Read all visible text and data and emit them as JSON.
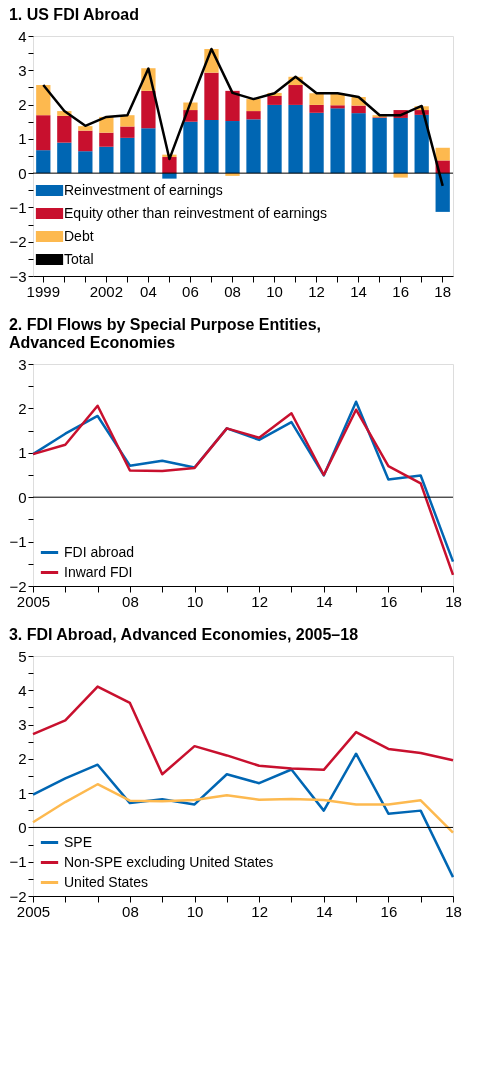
{
  "chart_data": [
    {
      "type": "bar",
      "title": "1. US FDI Abroad",
      "stacked": true,
      "legend": "bottom left",
      "grid": false,
      "categories": [
        "1999",
        null,
        null,
        "2002",
        null,
        "04",
        null,
        "06",
        null,
        "08",
        null,
        "10",
        null,
        "12",
        null,
        "14",
        null,
        "16",
        null,
        "18"
      ],
      "ylim": [
        -3,
        4
      ],
      "yticks": [
        {
          "value": -3,
          "label": "−3"
        },
        {
          "value": -2.5,
          "label": null
        },
        {
          "value": -2,
          "label": "−2"
        },
        {
          "value": -1.5,
          "label": null
        },
        {
          "value": -1,
          "label": "−1"
        },
        {
          "value": -0.5,
          "label": null
        },
        0,
        {
          "value": 0.5,
          "label": null
        },
        1,
        {
          "value": 1.5,
          "label": null
        },
        2,
        {
          "value": 2.5,
          "label": null
        },
        3,
        {
          "value": 3.5,
          "label": null
        },
        4
      ],
      "ref_lines": [
        {
          "axis": "y",
          "value": 0,
          "color": "#000000"
        }
      ],
      "series": [
        {
          "name": "Reinvestment of earnings",
          "color": "#0066b3",
          "values": [
            0.67,
            0.89,
            0.64,
            0.77,
            1.03,
            1.31,
            -0.16,
            1.5,
            1.55,
            1.52,
            1.57,
            1.99,
            1.99,
            1.76,
            1.89,
            1.75,
            1.61,
            1.61,
            1.7,
            -1.13
          ]
        },
        {
          "name": "Equity other than reinvestment of earnings",
          "color": "#c8102e",
          "values": [
            1.02,
            0.78,
            0.6,
            0.41,
            0.33,
            1.09,
            0.47,
            0.34,
            1.38,
            0.88,
            0.24,
            0.26,
            0.58,
            0.23,
            0.09,
            0.22,
            0.02,
            0.23,
            0.14,
            0.37
          ]
        },
        {
          "name": "Debt",
          "color": "#fdb94f",
          "values": [
            0.88,
            0.14,
            0.13,
            0.46,
            0.33,
            0.66,
            0.07,
            0.22,
            0.69,
            -0.08,
            0.35,
            0.09,
            0.24,
            0.34,
            0.35,
            0.25,
            0.06,
            -0.13,
            0.11,
            0.37
          ]
        },
        {
          "name": "Total",
          "type": "line",
          "color": "#000000",
          "values": [
            2.57,
            1.81,
            1.38,
            1.64,
            1.69,
            3.05,
            0.41,
            2.05,
            3.62,
            2.34,
            2.16,
            2.33,
            2.81,
            2.33,
            2.33,
            2.22,
            1.69,
            1.69,
            1.96,
            -0.37
          ]
        }
      ]
    },
    {
      "type": "line",
      "title": "2. FDI Flows by Special Purpose Entities, Advanced Economies",
      "legend": "bottom left",
      "grid": false,
      "x": [
        2005,
        2006,
        2007,
        2008,
        2009,
        2010,
        2011,
        2012,
        2013,
        2014,
        2015,
        2016,
        2017,
        2018
      ],
      "xlim": [
        2005,
        2018
      ],
      "xticks": [
        2005,
        {
          "value": 2006,
          "label": null
        },
        {
          "value": 2007,
          "label": null
        },
        {
          "value": 2008,
          "label": "08"
        },
        {
          "value": 2009,
          "label": null
        },
        {
          "value": 2010,
          "label": "10"
        },
        {
          "value": 2011,
          "label": null
        },
        {
          "value": 2012,
          "label": "12"
        },
        {
          "value": 2013,
          "label": null
        },
        {
          "value": 2014,
          "label": "14"
        },
        {
          "value": 2015,
          "label": null
        },
        {
          "value": 2016,
          "label": "16"
        },
        {
          "value": 2017,
          "label": null
        },
        {
          "value": 2018,
          "label": "18"
        }
      ],
      "ylim": [
        -2,
        3
      ],
      "yticks": [
        {
          "value": -2,
          "label": "−2"
        },
        {
          "value": -1.5,
          "label": null
        },
        {
          "value": -1,
          "label": "−1"
        },
        {
          "value": -0.5,
          "label": null
        },
        0,
        {
          "value": 0.5,
          "label": null
        },
        1,
        {
          "value": 1.5,
          "label": null
        },
        2,
        {
          "value": 2.5,
          "label": null
        },
        3
      ],
      "ref_lines": [
        {
          "axis": "y",
          "value": 0,
          "color": "#000000"
        }
      ],
      "series": [
        {
          "name": "FDI abroad",
          "color": "#0066b3",
          "values": [
            0.97,
            1.43,
            1.83,
            0.71,
            0.82,
            0.67,
            1.55,
            1.29,
            1.69,
            0.49,
            2.15,
            0.4,
            0.49,
            -1.45
          ]
        },
        {
          "name": "Inward FDI",
          "color": "#c8102e",
          "values": [
            0.97,
            1.18,
            2.06,
            0.6,
            0.59,
            0.66,
            1.55,
            1.34,
            1.89,
            0.5,
            1.97,
            0.7,
            0.31,
            -1.75
          ]
        }
      ]
    },
    {
      "type": "line",
      "title": "3. FDI Abroad, Advanced Economies, 2005–18",
      "legend": "bottom left",
      "grid": false,
      "x": [
        2005,
        2006,
        2007,
        2008,
        2009,
        2010,
        2011,
        2012,
        2013,
        2014,
        2015,
        2016,
        2017,
        2018
      ],
      "xlim": [
        2005,
        2018
      ],
      "xticks": [
        2005,
        {
          "value": 2006,
          "label": null
        },
        {
          "value": 2007,
          "label": null
        },
        {
          "value": 2008,
          "label": "08"
        },
        {
          "value": 2009,
          "label": null
        },
        {
          "value": 2010,
          "label": "10"
        },
        {
          "value": 2011,
          "label": null
        },
        {
          "value": 2012,
          "label": "12"
        },
        {
          "value": 2013,
          "label": null
        },
        {
          "value": 2014,
          "label": "14"
        },
        {
          "value": 2015,
          "label": null
        },
        {
          "value": 2016,
          "label": "16"
        },
        {
          "value": 2017,
          "label": null
        },
        {
          "value": 2018,
          "label": "18"
        }
      ],
      "ylim": [
        -2,
        5
      ],
      "yticks": [
        {
          "value": -2,
          "label": "−2"
        },
        {
          "value": -1.5,
          "label": null
        },
        {
          "value": -1,
          "label": "−1"
        },
        {
          "value": -0.5,
          "label": null
        },
        0,
        {
          "value": 0.5,
          "label": null
        },
        1,
        {
          "value": 1.5,
          "label": null
        },
        2,
        {
          "value": 2.5,
          "label": null
        },
        3,
        {
          "value": 3.5,
          "label": null
        },
        4,
        {
          "value": 4.5,
          "label": null
        },
        5
      ],
      "ref_lines": [
        {
          "axis": "y",
          "value": 0,
          "color": "#000000"
        }
      ],
      "series": [
        {
          "name": "SPE",
          "color": "#0066b3",
          "values": [
            0.96,
            1.43,
            1.83,
            0.71,
            0.82,
            0.67,
            1.55,
            1.29,
            1.69,
            0.49,
            2.15,
            0.4,
            0.49,
            -1.45
          ]
        },
        {
          "name": "Non-SPE excluding United States",
          "color": "#c8102e",
          "values": [
            2.72,
            3.12,
            4.11,
            3.63,
            1.55,
            2.37,
            2.1,
            1.8,
            1.72,
            1.68,
            2.78,
            2.29,
            2.17,
            1.96
          ]
        },
        {
          "name": "United States",
          "color": "#fdb94f",
          "values": [
            0.15,
            0.74,
            1.26,
            0.78,
            0.76,
            0.8,
            0.94,
            0.81,
            0.83,
            0.8,
            0.67,
            0.67,
            0.79,
            -0.15
          ]
        }
      ]
    }
  ]
}
